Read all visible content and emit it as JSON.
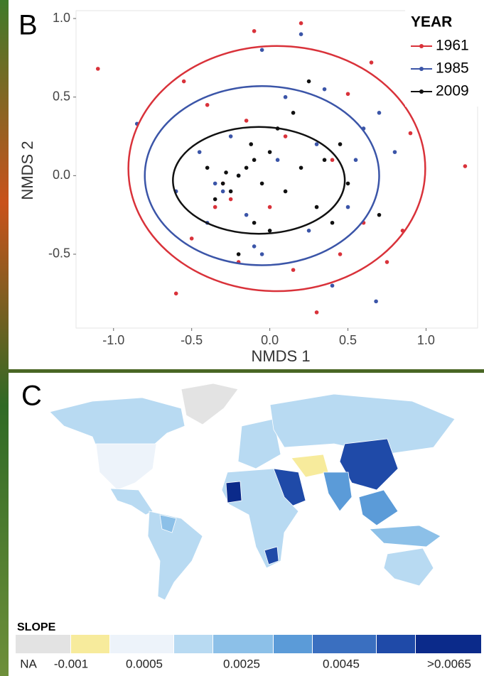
{
  "chart_data": [
    {
      "type": "scatter",
      "panel": "B",
      "x_label": "NMDS 1",
      "y_label": "NMDS 2",
      "xlim": [
        -1.24,
        1.33
      ],
      "ylim": [
        -0.97,
        1.05
      ],
      "xticks": [
        {
          "value": -1.0,
          "label": "-1.0"
        },
        -0.5,
        {
          "value": 0.0,
          "label": "0.0"
        },
        0.5,
        {
          "value": 1.0,
          "label": "1.0"
        }
      ],
      "yticks": [
        -0.5,
        {
          "value": 0.0,
          "label": "0.0"
        },
        0.5,
        {
          "value": 1.0,
          "label": "1.0"
        }
      ],
      "legend_title": "YEAR",
      "legend": "upper right",
      "series": [
        {
          "name": "1961",
          "color": "#d9323a",
          "x": [
            -1.1,
            -0.6,
            -0.1,
            0.2,
            0.5,
            0.9,
            1.25,
            0.85,
            0.3,
            -0.4,
            -0.55,
            -0.35,
            -0.3,
            -0.25,
            0.1,
            0.4,
            0.6,
            0.15,
            -0.5,
            -0.2,
            0.65,
            0.45,
            -0.15,
            0.0,
            0.75
          ],
          "values": [
            0.68,
            -0.75,
            0.92,
            0.97,
            0.52,
            0.27,
            0.06,
            -0.35,
            -0.87,
            0.45,
            0.6,
            -0.2,
            -0.05,
            -0.15,
            0.25,
            0.1,
            -0.3,
            -0.6,
            -0.4,
            -0.55,
            0.72,
            -0.5,
            0.35,
            -0.2,
            -0.55
          ],
          "ellipse": {
            "cx": 0.045,
            "cy": 0.045,
            "rx": 0.95,
            "ry": 0.78
          }
        },
        {
          "name": "1985",
          "color": "#3b55a8",
          "x": [
            -0.85,
            0.2,
            -0.05,
            0.68,
            -0.4,
            -0.3,
            -0.2,
            0.1,
            0.35,
            0.55,
            0.5,
            -0.1,
            0.25,
            -0.45,
            -0.25,
            0.7,
            0.3,
            -0.35,
            -0.15,
            0.05,
            0.8,
            -0.6,
            0.4,
            -0.05,
            0.6
          ],
          "values": [
            0.33,
            0.9,
            0.8,
            -0.8,
            -0.3,
            -0.1,
            0.0,
            0.5,
            0.55,
            0.1,
            -0.2,
            -0.45,
            -0.35,
            0.15,
            0.25,
            0.4,
            0.2,
            -0.05,
            -0.25,
            0.1,
            0.15,
            -0.1,
            -0.7,
            -0.5,
            0.3
          ],
          "ellipse": {
            "cx": -0.05,
            "cy": 0.0,
            "rx": 0.75,
            "ry": 0.57
          }
        },
        {
          "name": "2009",
          "color": "#111111",
          "x": [
            -0.3,
            -0.25,
            -0.2,
            -0.15,
            -0.1,
            -0.05,
            0.0,
            0.1,
            0.2,
            0.3,
            -0.35,
            -0.28,
            0.05,
            0.15,
            -0.1,
            0.4,
            -0.2,
            0.25,
            0.45,
            0.5,
            -0.4,
            0.35,
            0.0,
            0.7,
            -0.12
          ],
          "values": [
            -0.05,
            -0.1,
            0.0,
            0.05,
            0.1,
            -0.05,
            0.15,
            -0.1,
            0.05,
            -0.2,
            -0.15,
            0.02,
            0.3,
            0.4,
            -0.3,
            -0.3,
            -0.5,
            0.6,
            0.2,
            -0.05,
            0.05,
            0.1,
            -0.35,
            -0.25,
            0.2
          ],
          "ellipse": {
            "cx": -0.07,
            "cy": -0.03,
            "rx": 0.55,
            "ry": 0.34
          }
        }
      ]
    }
  ],
  "map": {
    "panel": "C",
    "legend_title": "SLOPE",
    "legend_colors": [
      "#e3e3e3",
      "#f7eb9c",
      "#edf3fa",
      "#b8daf2",
      "#8cc0e8",
      "#5b9bd8",
      "#3a6fc0",
      "#1f4aa8",
      "#0b2a8a"
    ],
    "legend_labels": [
      "NA",
      "-0.001",
      "0.0005",
      "0.0025",
      "0.0045",
      ">0.0065"
    ]
  }
}
